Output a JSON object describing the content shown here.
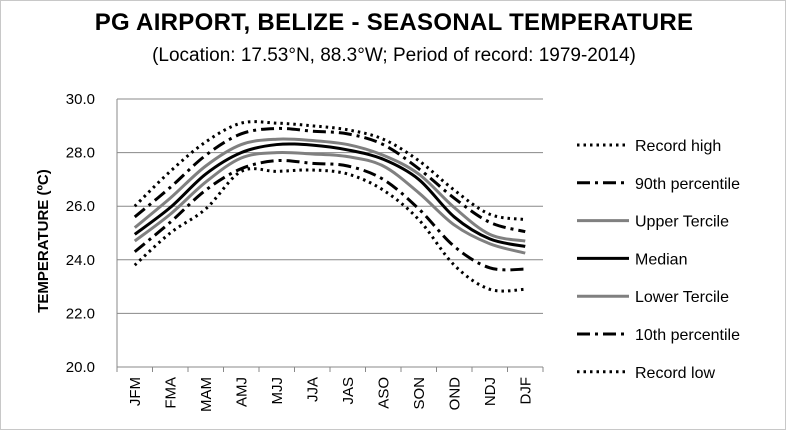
{
  "chart_data": {
    "type": "line",
    "title": "PG AIRPORT, BELIZE - SEASONAL TEMPERATURE",
    "subtitle": "(Location: 17.53°N, 88.3°W; Period of record: 1979-2014)",
    "ylabel": "TEMPERATURE (ºC)",
    "xlabel": "",
    "ylim": [
      20.0,
      30.0
    ],
    "yticks": [
      "20.0",
      "22.0",
      "24.0",
      "26.0",
      "28.0",
      "30.0"
    ],
    "grid": true,
    "legend_position": "right",
    "categories": [
      "JFM",
      "FMA",
      "MAM",
      "AMJ",
      "MJJ",
      "JJA",
      "JAS",
      "ASO",
      "SON",
      "OND",
      "NDJ",
      "DJF"
    ],
    "series": [
      {
        "name": "Record high",
        "color": "#000000",
        "style": "dotted",
        "width": 3,
        "values": [
          26.0,
          27.3,
          28.4,
          29.1,
          29.1,
          29.0,
          28.85,
          28.5,
          27.7,
          26.6,
          25.7,
          25.5
        ]
      },
      {
        "name": "90th percentile",
        "color": "#000000",
        "style": "dashdot",
        "width": 3,
        "values": [
          25.6,
          26.7,
          27.9,
          28.7,
          28.9,
          28.8,
          28.7,
          28.3,
          27.4,
          26.3,
          25.4,
          25.05
        ]
      },
      {
        "name": "Upper Tercile",
        "color": "#808080",
        "style": "solid",
        "width": 3,
        "values": [
          25.2,
          26.3,
          27.5,
          28.3,
          28.5,
          28.45,
          28.3,
          27.9,
          27.2,
          25.95,
          24.95,
          24.7
        ]
      },
      {
        "name": "Median",
        "color": "#000000",
        "style": "solid",
        "width": 3,
        "values": [
          24.95,
          25.95,
          27.2,
          28.0,
          28.3,
          28.28,
          28.1,
          27.75,
          27.0,
          25.6,
          24.78,
          24.5
        ]
      },
      {
        "name": "Lower Tercile",
        "color": "#808080",
        "style": "solid",
        "width": 3,
        "values": [
          24.7,
          25.7,
          26.9,
          27.8,
          28.0,
          27.95,
          27.85,
          27.5,
          26.5,
          25.3,
          24.6,
          24.25
        ]
      },
      {
        "name": "10th percentile",
        "color": "#000000",
        "style": "dashdot",
        "width": 3,
        "values": [
          24.3,
          25.4,
          26.6,
          27.4,
          27.7,
          27.6,
          27.5,
          27.0,
          25.9,
          24.5,
          23.7,
          23.65
        ]
      },
      {
        "name": "Record low",
        "color": "#000000",
        "style": "dotted",
        "width": 3,
        "values": [
          23.8,
          25.0,
          25.9,
          27.3,
          27.3,
          27.35,
          27.2,
          26.6,
          25.5,
          23.8,
          22.9,
          22.9
        ]
      }
    ]
  }
}
